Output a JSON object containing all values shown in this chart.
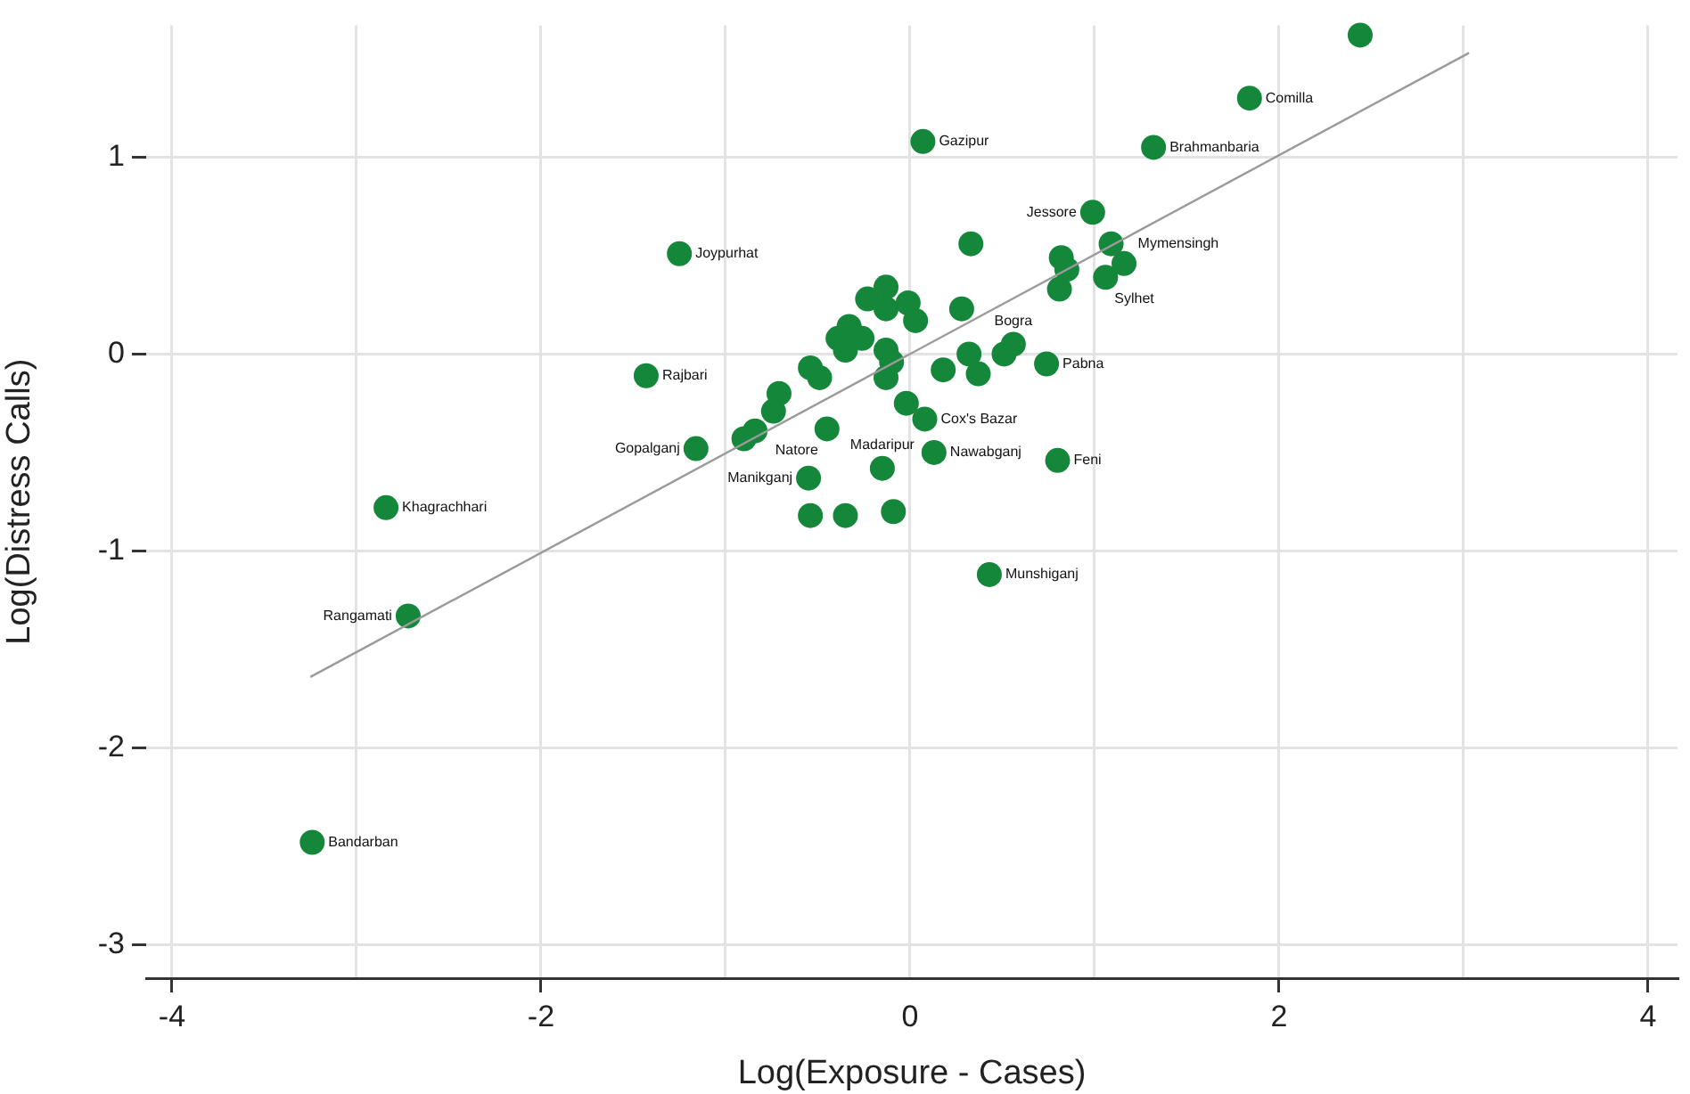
{
  "chart_data": {
    "type": "scatter",
    "xlabel": "Log(Exposure - Cases)",
    "ylabel": "Log(Distress Calls)",
    "xlim": [
      -4.14,
      4.16
    ],
    "ylim": [
      -3.17,
      1.67
    ],
    "xticks": [
      -4,
      {
        "value": -3,
        "label": null
      },
      -2,
      {
        "value": -1,
        "label": null
      },
      0,
      {
        "value": 1,
        "label": null
      },
      2,
      {
        "value": 3,
        "label": null
      },
      4
    ],
    "yticks": [
      -3,
      -2,
      -1,
      0,
      1
    ],
    "grid": true,
    "legend": false,
    "marker": "circle",
    "series": [
      {
        "type": "scatter",
        "color": "#14873a",
        "x": [
          -3.24,
          -2.84,
          -2.72,
          -1.43,
          -1.25,
          0.07,
          1.32,
          1.84,
          2.44,
          0.99,
          1.09,
          1.06,
          0.8,
          0.43,
          0.13,
          -0.15,
          -0.55,
          -0.54,
          -0.35,
          -0.09,
          -1.16,
          -0.45,
          0.08,
          -0.02,
          0.56,
          0.74,
          0.33,
          0.82,
          0.85,
          0.81,
          1.16,
          -0.23,
          -0.13,
          -0.01,
          -0.13,
          0.28,
          0.03,
          -0.33,
          -0.39,
          -0.35,
          -0.26,
          -0.13,
          -0.1,
          -0.54,
          -0.49,
          -0.71,
          -0.13,
          0.18,
          0.37,
          0.32,
          0.51,
          -0.74,
          -0.9,
          -0.84
        ],
        "values": [
          -2.48,
          -0.78,
          -1.33,
          -0.11,
          0.51,
          1.08,
          1.05,
          1.3,
          1.62,
          0.72,
          0.56,
          0.39,
          -0.54,
          -1.12,
          -0.5,
          -0.58,
          -0.63,
          -0.82,
          -0.82,
          -0.8,
          -0.48,
          -0.38,
          -0.33,
          -0.25,
          0.05,
          -0.05,
          0.56,
          0.49,
          0.43,
          0.33,
          0.46,
          0.28,
          0.34,
          0.26,
          0.23,
          0.23,
          0.17,
          0.14,
          0.08,
          0.02,
          0.08,
          0.02,
          -0.04,
          -0.07,
          -0.12,
          -0.2,
          -0.12,
          -0.08,
          -0.1,
          0.0,
          0.0,
          -0.29,
          -0.43,
          -0.39
        ]
      },
      {
        "type": "line",
        "color": "#9a9a9a",
        "marker": "none",
        "x": [
          -3.25,
          3.03
        ],
        "values": [
          -1.64,
          1.53
        ]
      }
    ],
    "annotations": [
      {
        "text": "Bandarban",
        "x": -3.24,
        "y": -2.48
      },
      {
        "text": "Khagrachhari",
        "x": -2.84,
        "y": -0.78
      },
      {
        "text": "Rangamati",
        "x": -2.72,
        "y": -1.33
      },
      {
        "text": "Rajbari",
        "x": -1.43,
        "y": -0.11
      },
      {
        "text": "Joypurhat",
        "x": -1.25,
        "y": 0.51
      },
      {
        "text": "Gazipur",
        "x": 0.07,
        "y": 1.08
      },
      {
        "text": "Brahmanbaria",
        "x": 1.32,
        "y": 1.05
      },
      {
        "text": "Comilla",
        "x": 1.84,
        "y": 1.3
      },
      {
        "text": "Jessore",
        "x": 0.99,
        "y": 0.72
      },
      {
        "text": "Mymensingh",
        "x": 1.09,
        "y": 0.56
      },
      {
        "text": "Sylhet",
        "x": 1.06,
        "y": 0.39
      },
      {
        "text": "Feni",
        "x": 0.8,
        "y": -0.54
      },
      {
        "text": "Munshiganj",
        "x": 0.43,
        "y": -1.12
      },
      {
        "text": "Nawabganj",
        "x": 0.13,
        "y": -0.5
      },
      {
        "text": "Madaripur",
        "x": -0.15,
        "y": -0.58
      },
      {
        "text": "Manikganj",
        "x": -0.55,
        "y": -0.63
      },
      {
        "text": "Gopalganj",
        "x": -1.16,
        "y": -0.48
      },
      {
        "text": "Natore",
        "x": -0.45,
        "y": -0.38
      },
      {
        "text": "Cox's Bazar",
        "x": 0.08,
        "y": -0.33
      },
      {
        "text": "Bogra",
        "x": 0.56,
        "y": 0.05
      },
      {
        "text": "Pabna",
        "x": 0.74,
        "y": -0.05
      }
    ]
  }
}
